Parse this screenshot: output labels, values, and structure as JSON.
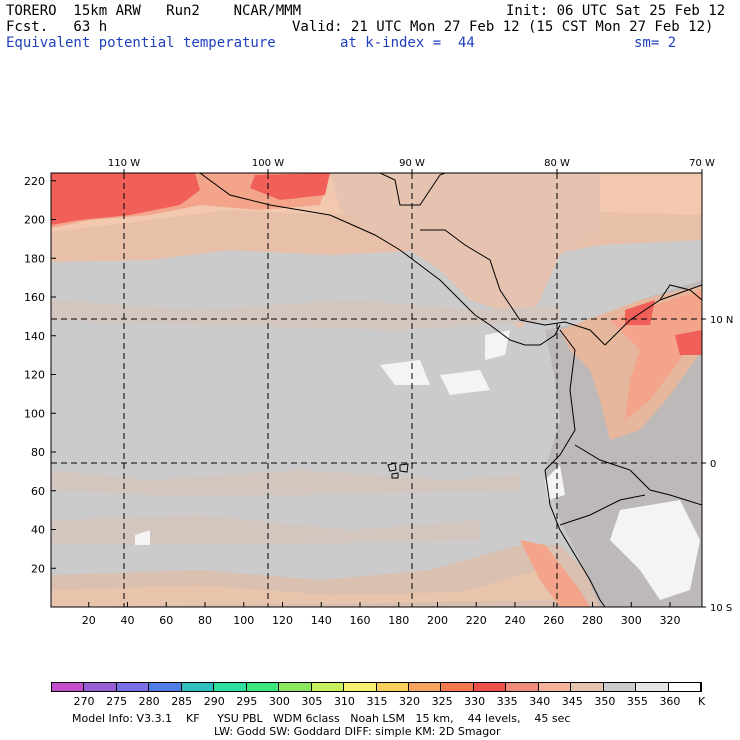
{
  "header": {
    "model": "TORERO  15km ARW   Run2    NCAR/MMM",
    "init": "Init: 06 UTC Sat 25 Feb 12",
    "fcst": "Fcst.   63 h",
    "valid": "Valid: 21 UTC Mon 27 Feb 12 (15 CST Mon 27 Feb 12)",
    "field": "Equivalent potential temperature",
    "level": "at k-index =  44",
    "smooth": "sm= 2"
  },
  "map": {
    "top_labels": [
      "110 W",
      "100 W",
      "90 W",
      "80 W",
      "70 W"
    ],
    "right_labels": [
      "10 N",
      "0",
      "10 S"
    ],
    "y_ticks": [
      "20",
      "40",
      "60",
      "80",
      "100",
      "120",
      "140",
      "160",
      "180",
      "200",
      "220"
    ],
    "x_ticks": [
      "20",
      "40",
      "60",
      "80",
      "100",
      "120",
      "140",
      "160",
      "180",
      "200",
      "220",
      "240",
      "260",
      "280",
      "300",
      "320"
    ],
    "colors": {
      "ocean_base": "#cbcbcb",
      "land_warm": "#e6b79c",
      "peach": "#f2c8ae",
      "salmon": "#f3a48a",
      "red": "#f06058",
      "white_patch": "#f4f4f4",
      "coast": "#000000",
      "grid": "#000000"
    }
  },
  "colorbar": {
    "unit": "K",
    "labels": [
      "270",
      "275",
      "280",
      "285",
      "290",
      "295",
      "300",
      "305",
      "310",
      "315",
      "320",
      "325",
      "330",
      "335",
      "340",
      "345",
      "350",
      "355",
      "360"
    ],
    "colors": [
      "#c44fcc",
      "#9a5fd6",
      "#7b6fe6",
      "#4f7fe6",
      "#2fbfbf",
      "#2fdfa0",
      "#3fe67f",
      "#8fe65f",
      "#c6ef5f",
      "#f6ef6f",
      "#f6cf5f",
      "#f6a55f",
      "#f37a4f",
      "#f0504a",
      "#f08c7a",
      "#f2b49a",
      "#e6c3b0",
      "#cbcbcb",
      "#e6e6e6",
      "#ffffff"
    ]
  },
  "footer": {
    "line1": "Model Info: V3.3.1    KF     YSU PBL   WDM 6class   Noah LSM   15 km,    44 levels,    45 sec",
    "line2": "LW: Godd SW: Goddard DIFF: simple KM: 2D Smagor"
  }
}
